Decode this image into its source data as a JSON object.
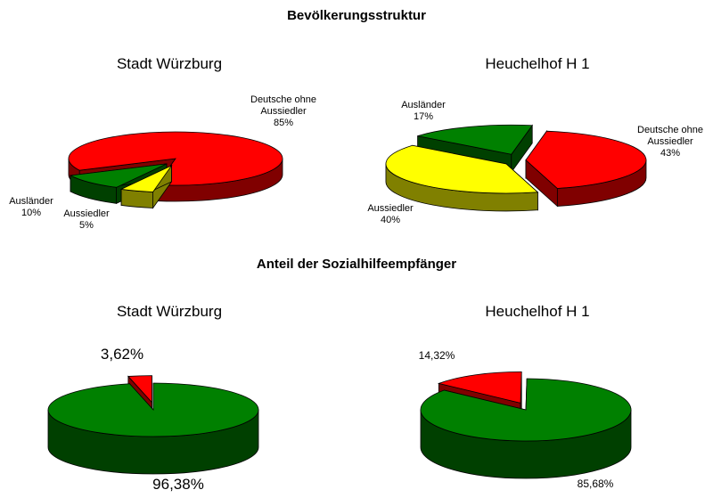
{
  "headings": [
    "Bevölkerungsstruktur",
    "Anteil der Sozialhilfeempfänger"
  ],
  "chart_data": [
    {
      "type": "pie",
      "title": "Stadt Würzburg",
      "categories": [
        "Deutsche ohne Aussiedler",
        "Aussiedler",
        "Ausländer"
      ],
      "values": [
        85,
        5,
        10
      ],
      "value_labels": [
        "85%",
        "5%",
        "10%"
      ],
      "colors": [
        "#ff0000",
        "#ffff00",
        "#008000"
      ]
    },
    {
      "type": "pie",
      "title": "Heuchelhof H 1",
      "categories": [
        "Deutsche ohne Aussiedler",
        "Aussiedler",
        "Ausländer"
      ],
      "values": [
        43,
        40,
        17
      ],
      "value_labels": [
        "43%",
        "40%",
        "17%"
      ],
      "colors": [
        "#ff0000",
        "#ffff00",
        "#008000"
      ]
    },
    {
      "type": "pie",
      "title": "Stadt Würzburg",
      "values": [
        3.62,
        96.38
      ],
      "value_labels": [
        "3,62%",
        "96,38%"
      ],
      "colors": [
        "#ff0000",
        "#008000"
      ]
    },
    {
      "type": "pie",
      "title": "Heuchelhof H 1",
      "values": [
        14.32,
        85.68
      ],
      "value_labels": [
        "14,32%",
        "85,68%"
      ],
      "colors": [
        "#ff0000",
        "#008000"
      ]
    }
  ]
}
